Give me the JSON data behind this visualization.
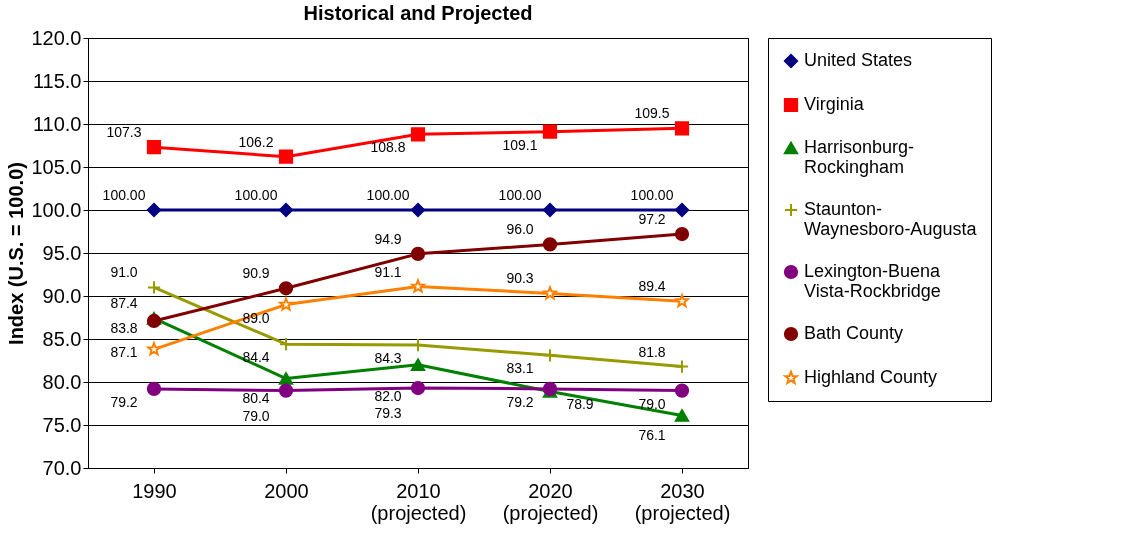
{
  "chart_data": {
    "type": "line",
    "title": "Historical and Projected",
    "ylabel": "Index (U.S. = 100.0)",
    "categories": [
      "1990",
      "2000",
      "2010 (projected)",
      "2020 (projected)",
      "2030 (projected)"
    ],
    "ylim": [
      70,
      120
    ],
    "yticks": [
      {
        "value": 70,
        "label": "70.0"
      },
      {
        "value": 75,
        "label": "75.0"
      },
      {
        "value": 80,
        "label": "80.0"
      },
      {
        "value": 85,
        "label": "85.0"
      },
      {
        "value": 90,
        "label": "90.0"
      },
      {
        "value": 95,
        "label": "95.0"
      },
      {
        "value": 100,
        "label": "100.0"
      },
      {
        "value": 105,
        "label": "105.0"
      },
      {
        "value": 110,
        "label": "110.0"
      },
      {
        "value": 115,
        "label": "115.0"
      },
      {
        "value": 120,
        "label": "120.0"
      }
    ],
    "grid": "y",
    "legend": "right",
    "series": [
      {
        "name": "United States",
        "color": "#000080",
        "marker": "diamond",
        "values": [
          100,
          100,
          100,
          100,
          100
        ],
        "value_labels": [
          "100.00",
          "100.00",
          "100.00",
          "100.00",
          "100.00"
        ]
      },
      {
        "name": "Virginia",
        "color": "#ff0000",
        "marker": "square",
        "values": [
          107.3,
          106.2,
          108.8,
          109.1,
          109.5
        ],
        "value_labels": [
          "107.3",
          "106.2",
          "108.8",
          "109.1",
          "109.5"
        ]
      },
      {
        "name": "Harrisonburg-Rockingham",
        "color": "#008000",
        "marker": "triangle",
        "values": [
          87.4,
          80.4,
          82.0,
          78.9,
          76.1
        ],
        "value_labels": [
          "87.4",
          "80.4",
          "82.0",
          "78.9",
          "76.1"
        ]
      },
      {
        "name": "Staunton-Waynesboro-Augusta",
        "color": "#999900",
        "marker": "cross",
        "values": [
          91.0,
          84.4,
          84.3,
          83.1,
          81.8
        ],
        "value_labels": [
          "91.0",
          "84.4",
          "84.3",
          "83.1",
          "81.8"
        ]
      },
      {
        "name": "Lexington-Buena Vista-Rockbridge",
        "color": "#800080",
        "marker": "circle",
        "values": [
          79.2,
          79.0,
          79.3,
          79.2,
          79.0
        ],
        "value_labels": [
          "79.2",
          "79.0",
          "79.3",
          "79.2",
          "79.0"
        ]
      },
      {
        "name": "Bath County",
        "color": "#800000",
        "marker": "circle",
        "values": [
          87.1,
          90.9,
          94.9,
          96.0,
          97.2
        ],
        "value_labels": [
          "87.1",
          "90.9",
          "94.9",
          "96.0",
          "97.2"
        ]
      },
      {
        "name": "Highland County",
        "color": "#ff8000",
        "marker": "star",
        "values": [
          83.8,
          89.0,
          91.1,
          90.3,
          89.4
        ],
        "value_labels": [
          "83.8",
          "89.0",
          "91.1",
          "90.3",
          "89.4"
        ]
      }
    ]
  }
}
